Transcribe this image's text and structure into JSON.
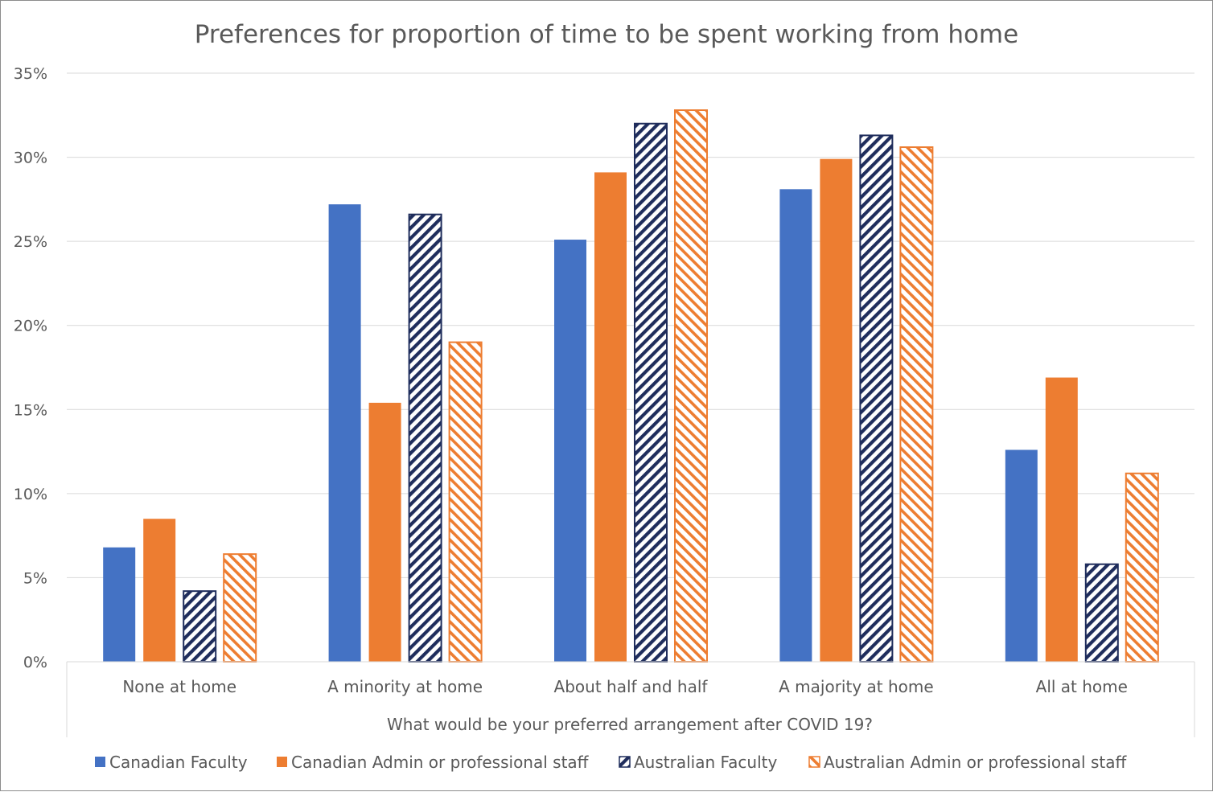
{
  "chart_data": {
    "type": "bar",
    "title": "Preferences for proportion of time to be spent working from home",
    "xlabel": "What would be your preferred arrangement after COVID 19?",
    "ylabel": "",
    "categories": [
      "None at home",
      "A minority at home",
      "About half and half",
      "A majority at home",
      "All at home"
    ],
    "ylim": [
      0,
      35
    ],
    "yticks": [
      0,
      5,
      10,
      15,
      20,
      25,
      30,
      35
    ],
    "ytick_labels": [
      "0%",
      "5%",
      "10%",
      "15%",
      "20%",
      "25%",
      "30%",
      "35%"
    ],
    "grid": true,
    "legend_position": "bottom",
    "series": [
      {
        "name": "Canadian Faculty",
        "values": [
          6.8,
          27.2,
          25.1,
          28.1,
          12.6
        ],
        "color": "#4472c4",
        "pattern": "solid"
      },
      {
        "name": "Canadian Admin or professional staff",
        "values": [
          8.5,
          15.4,
          29.1,
          29.9,
          16.9
        ],
        "color": "#ed7d31",
        "pattern": "solid"
      },
      {
        "name": "Australian Faculty",
        "values": [
          4.2,
          26.6,
          32.0,
          31.3,
          5.8
        ],
        "color": "#1f2d5c",
        "pattern": "hatch"
      },
      {
        "name": "Australian Admin or professional staff",
        "values": [
          6.4,
          19.0,
          32.8,
          30.6,
          11.2
        ],
        "color": "#ed7d31",
        "pattern": "hatch"
      }
    ]
  }
}
